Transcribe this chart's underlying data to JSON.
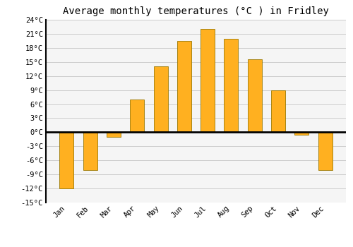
{
  "title": "Average monthly temperatures (°C ) in Fridley",
  "months": [
    "Jan",
    "Feb",
    "Mar",
    "Apr",
    "May",
    "Jun",
    "Jul",
    "Aug",
    "Sep",
    "Oct",
    "Nov",
    "Dec"
  ],
  "values": [
    -12,
    -8,
    -1,
    7,
    14,
    19.5,
    22,
    20,
    15.5,
    9,
    -0.5,
    -8
  ],
  "bar_color_top": "#FFB833",
  "bar_color_bottom": "#FFA000",
  "bar_edge_color": "#888833",
  "background_color": "#ffffff",
  "plot_bg_color": "#f5f5f5",
  "ylim": [
    -15,
    24
  ],
  "yticks": [
    -15,
    -12,
    -9,
    -6,
    -3,
    0,
    3,
    6,
    9,
    12,
    15,
    18,
    21,
    24
  ],
  "ytick_labels": [
    "-15°C",
    "-12°C",
    "-9°C",
    "-6°C",
    "-3°C",
    "0°C",
    "3°C",
    "6°C",
    "9°C",
    "12°C",
    "15°C",
    "18°C",
    "21°C",
    "24°C"
  ],
  "grid_color": "#cccccc",
  "zero_line_color": "#000000",
  "title_fontsize": 10,
  "tick_fontsize": 7.5,
  "bar_width": 0.6
}
